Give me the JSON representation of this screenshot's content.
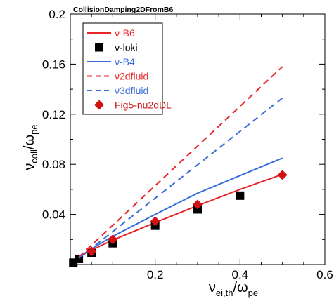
{
  "chart_data": {
    "type": "line",
    "title": "CollisionDamping2DFromB6",
    "xlabel": {
      "main": "ν",
      "sub": "ei,th",
      "slash": "/ω",
      "sub2": "pe"
    },
    "ylabel": {
      "main": "ν",
      "sub": "coll",
      "slash": "/ω",
      "sub2": "pe"
    },
    "xlim": [
      0,
      0.6
    ],
    "ylim": [
      0,
      0.2
    ],
    "xticks": [
      0.2,
      0.4,
      0.6
    ],
    "xtick_labels": [
      "0.2",
      "0.4",
      "0.6"
    ],
    "yticks": [
      0.04,
      0.08,
      0.12,
      0.16,
      0.2
    ],
    "ytick_labels": [
      "0.04",
      "0.08",
      "0.12",
      "0.16",
      "0.2"
    ],
    "grid": false,
    "legend_position": "top-left",
    "series": [
      {
        "name": "ν-B6",
        "kind": "line",
        "style": "solid",
        "color": "#e8262a",
        "x": [
          0.02,
          0.05,
          0.1,
          0.2,
          0.3,
          0.4,
          0.5
        ],
        "y": [
          0.006,
          0.0115,
          0.0195,
          0.0335,
          0.047,
          0.06,
          0.072
        ]
      },
      {
        "name": "ν-loki",
        "kind": "marker",
        "marker": "square",
        "color": "#000000",
        "x": [
          0.007,
          0.02,
          0.05,
          0.1,
          0.2,
          0.3,
          0.4
        ],
        "y": [
          0.0015,
          0.0045,
          0.009,
          0.017,
          0.031,
          0.044,
          0.055
        ]
      },
      {
        "name": "ν-B4",
        "kind": "line",
        "style": "solid",
        "color": "#3a6fd8",
        "x": [
          0.02,
          0.05,
          0.1,
          0.2,
          0.3,
          0.4,
          0.5
        ],
        "y": [
          0.006,
          0.0125,
          0.0225,
          0.04,
          0.057,
          0.071,
          0.085
        ]
      },
      {
        "name": "ν2dfluid",
        "kind": "line",
        "style": "dashed",
        "color": "#e8262a",
        "x": [
          0.02,
          0.5
        ],
        "y": [
          0.006,
          0.158
        ]
      },
      {
        "name": "ν3dfluid",
        "kind": "line",
        "style": "dashed",
        "color": "#3a6fd8",
        "x": [
          0.02,
          0.5
        ],
        "y": [
          0.005,
          0.133
        ]
      },
      {
        "name": "Fig5-nu2dDL",
        "kind": "marker",
        "marker": "diamond",
        "color": "#d11212",
        "x": [
          0.05,
          0.1,
          0.2,
          0.3,
          0.5
        ],
        "y": [
          0.0105,
          0.02,
          0.0345,
          0.048,
          0.0715
        ]
      }
    ]
  }
}
